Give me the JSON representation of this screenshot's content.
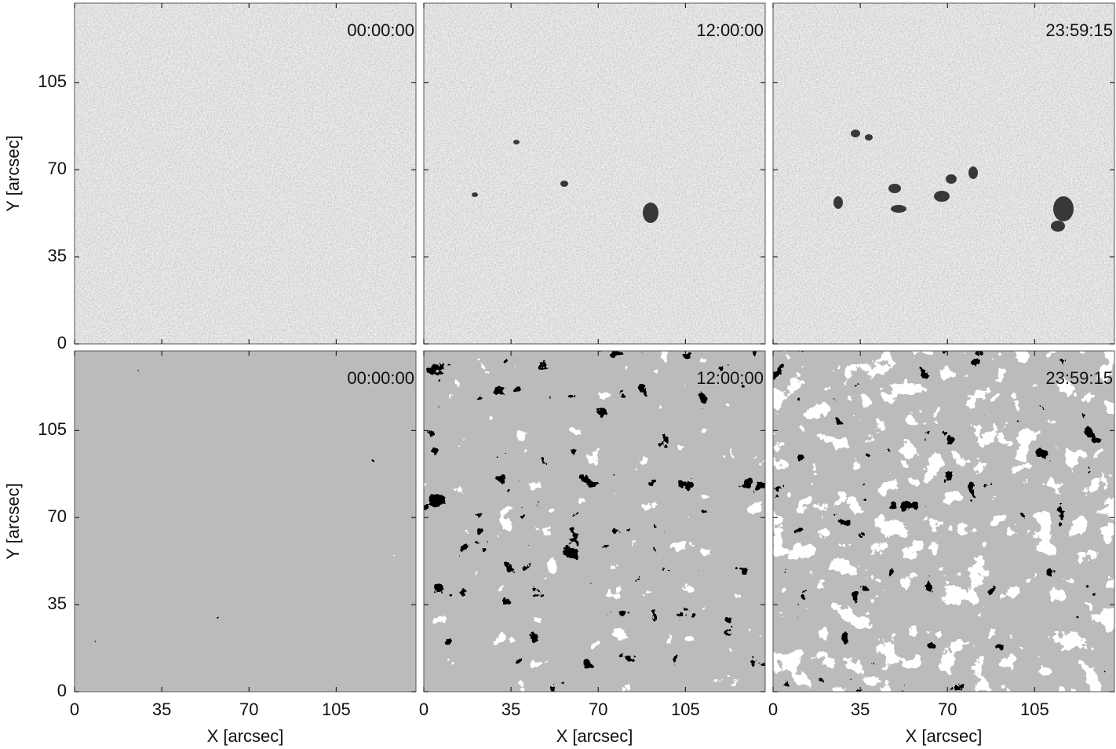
{
  "figure": {
    "panels": [
      {
        "time": "00:00:00"
      },
      {
        "time": "12:00:00"
      },
      {
        "time": "23:59:15"
      },
      {
        "time": "00:00:00"
      },
      {
        "time": "12:00:00"
      },
      {
        "time": "23:59:15"
      }
    ],
    "x_label": "X [arcsec]",
    "y_label": "Y [arcsec]",
    "xlim": [
      0,
      137
    ],
    "ylim": [
      0,
      137
    ],
    "xticks": [
      0,
      35,
      70,
      105
    ],
    "yticks": [
      0,
      35,
      70,
      105
    ]
  }
}
